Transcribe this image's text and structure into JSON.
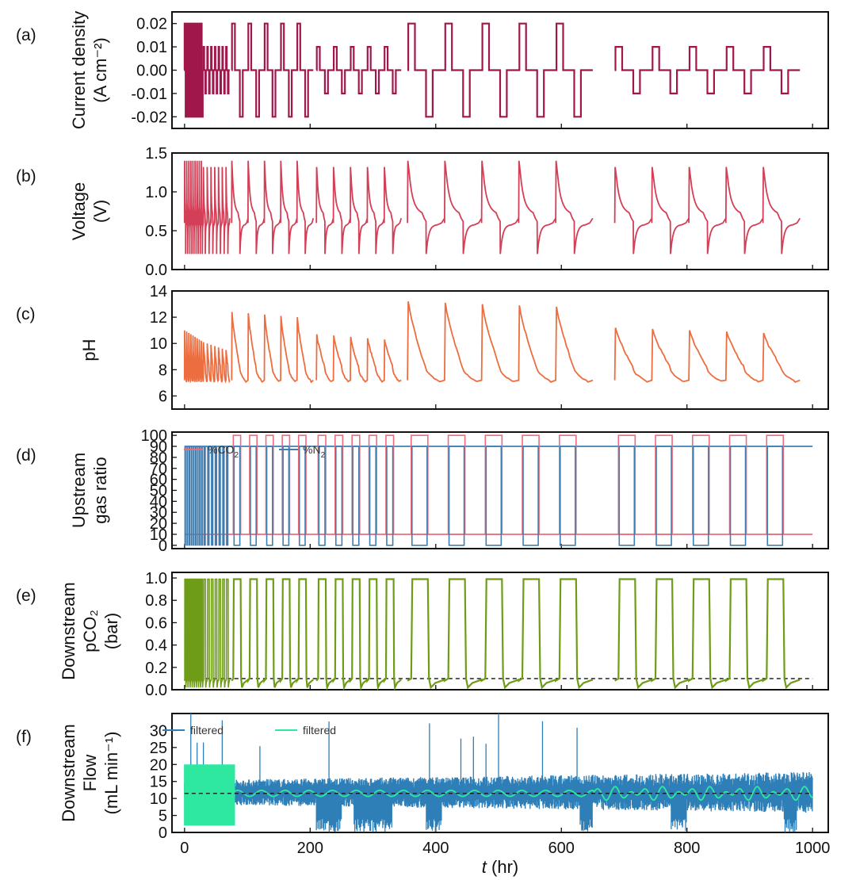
{
  "figure": {
    "shared_xaxis": {
      "label_italic": "t",
      "label_rest": " (hr)",
      "ticks": [
        0,
        200,
        400,
        600,
        800,
        1000
      ],
      "xlim": [
        -20,
        1025
      ]
    }
  },
  "chart_data": [
    {
      "panel": "(a)",
      "type": "line",
      "ylabel_lines": [
        "Current density",
        "(A cm⁻²)"
      ],
      "ylim": [
        -0.025,
        0.025
      ],
      "yticks": [
        0.02,
        0.01,
        0.0,
        -0.01,
        -0.02
      ],
      "ytick_labels": [
        "0.02",
        "0.01",
        "0.00",
        "-0.01",
        "-0.02"
      ],
      "color": "#a0174c",
      "segments": [
        {
          "start": 0,
          "end": 30,
          "n_cycles": 9,
          "amplitude": 0.02
        },
        {
          "start": 30,
          "end": 72,
          "n_cycles": 7,
          "amplitude": 0.01
        },
        {
          "start": 75,
          "end": 205,
          "n_cycles": 5,
          "amplitude": 0.02
        },
        {
          "start": 210,
          "end": 345,
          "n_cycles": 5,
          "amplitude": 0.01
        },
        {
          "start": 355,
          "end": 650,
          "n_cycles": 5,
          "amplitude": 0.02
        },
        {
          "start": 685,
          "end": 980,
          "n_cycles": 5,
          "amplitude": 0.01
        }
      ]
    },
    {
      "panel": "(b)",
      "type": "line",
      "ylabel_lines": [
        "Voltage",
        "(V)"
      ],
      "ylim": [
        0.0,
        1.5
      ],
      "yticks": [
        1.5,
        1.0,
        0.5,
        0.0
      ],
      "ytick_labels": [
        "1.5",
        "1.0",
        "0.5",
        "0.0"
      ],
      "color": "#d33f56",
      "range_V": [
        0.2,
        1.4
      ]
    },
    {
      "panel": "(c)",
      "type": "line",
      "ylabel_lines": [
        "pH"
      ],
      "ylim": [
        5,
        14
      ],
      "yticks": [
        14,
        12,
        10,
        8,
        6
      ],
      "ytick_labels": [
        "14",
        "12",
        "10",
        "8",
        "6"
      ],
      "color": "#ec6d3f",
      "range_pH": [
        6.8,
        13.2
      ]
    },
    {
      "panel": "(d)",
      "type": "line",
      "ylabel_lines": [
        "Upstream",
        "gas ratio"
      ],
      "ylim": [
        -3,
        103
      ],
      "yticks": [
        100,
        90,
        80,
        70,
        60,
        50,
        40,
        30,
        20,
        10,
        0
      ],
      "ytick_labels": [
        "100",
        "90",
        "80",
        "70",
        "60",
        "50",
        "40",
        "30",
        "20",
        "10",
        "0"
      ],
      "series": [
        {
          "name": "%CO",
          "sub": "2",
          "color": "#ef6b7b",
          "levels": [
            10,
            100
          ]
        },
        {
          "name": "%N",
          "sub": "2",
          "color": "#3f7fb0",
          "levels": [
            0,
            90
          ]
        }
      ]
    },
    {
      "panel": "(e)",
      "type": "line",
      "ylabel_lines": [
        "Downstream",
        "pCO₂",
        "(bar)"
      ],
      "ylim": [
        0.0,
        1.05
      ],
      "yticks": [
        1.0,
        0.8,
        0.6,
        0.4,
        0.2,
        0.0
      ],
      "ytick_labels": [
        "1.0",
        "0.8",
        "0.6",
        "0.4",
        "0.2",
        "0.0"
      ],
      "color": "#6e9c16",
      "baseline_dashed": 0.1,
      "levels": [
        0.1,
        1.0
      ]
    },
    {
      "panel": "(f)",
      "type": "line",
      "ylabel_lines": [
        "Downstream",
        "Flow",
        "(mL min⁻¹)"
      ],
      "ylim": [
        0,
        35
      ],
      "yticks": [
        30,
        25,
        20,
        15,
        10,
        5,
        0
      ],
      "ytick_labels": [
        "30",
        "25",
        "20",
        "15",
        "10",
        "5",
        "0"
      ],
      "series": [
        {
          "name": "filtered",
          "color": "#2e7fb8"
        },
        {
          "name": "filtered",
          "color": "#2ee8a0"
        }
      ],
      "baseline_dashed": 11.5
    }
  ]
}
